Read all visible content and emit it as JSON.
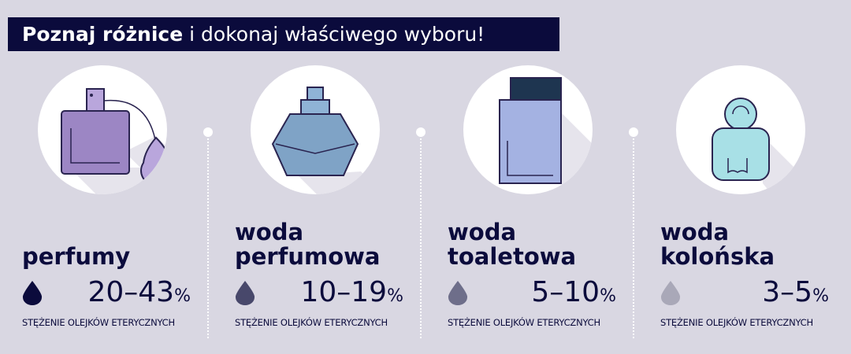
{
  "title": {
    "bold": "Poznaj różnice",
    "rest": " i dokonaj właściwego wyboru!"
  },
  "items": [
    {
      "name_l1": "",
      "name_l2": "perfumy",
      "range": "20–43",
      "unit": "%",
      "caption": "STĘŻENIE OLEJKÓW ETERYCZNYCH",
      "drop_color": "#0b0b3c",
      "icon": "perfume-atomizer-bottle-icon"
    },
    {
      "name_l1": "woda",
      "name_l2": "perfumowa",
      "range": "10–19",
      "unit": "%",
      "caption": "STĘŻENIE OLEJKÓW ETERYCZNYCH",
      "drop_color": "#48486b",
      "icon": "hexagon-perfume-bottle-icon"
    },
    {
      "name_l1": "woda",
      "name_l2": "toaletowa",
      "range": "5–10",
      "unit": "%",
      "caption": "STĘŻENIE OLEJKÓW ETERYCZNYCH",
      "drop_color": "#6e6e8a",
      "icon": "rectangular-bottle-icon"
    },
    {
      "name_l1": "woda",
      "name_l2": "kolońska",
      "range": "3–5",
      "unit": "%",
      "caption": "STĘŻENIE OLEJKÓW ETERYCZNYCH",
      "drop_color": "#a9a8b8",
      "icon": "cologne-bottle-icon"
    }
  ]
}
